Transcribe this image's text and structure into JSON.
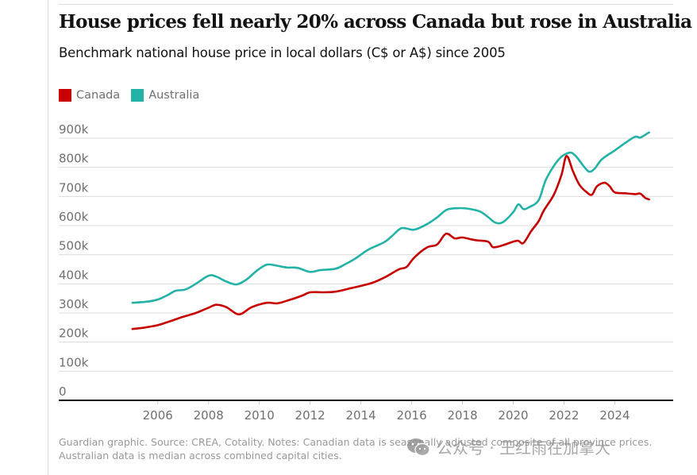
{
  "header": {
    "title": "House prices fell nearly 20% across Canada but rose in Australia",
    "subtitle": "Benchmark national house price in local dollars (C$ or A$) since 2005"
  },
  "legend": [
    {
      "label": "Canada",
      "color": "#c70000"
    },
    {
      "label": "Australia",
      "color": "#22b3a6"
    }
  ],
  "footer": {
    "source_note": "Guardian graphic. Source: CREA, Cotality. Notes: Canadian data is seasonally adjusted composite of all province prices. Australian data is median across combined capital cities."
  },
  "watermark": {
    "text": "公众号 · 王红雨在加拿大",
    "icon": "wechat-icon"
  },
  "chart_data": {
    "type": "line",
    "title": "House prices fell nearly 20% across Canada but rose in Australia",
    "subtitle": "Benchmark national house price in local dollars (C$ or A$) since 2005",
    "xlabel": "",
    "ylabel": "",
    "xlim": [
      2002.1,
      2026.3
    ],
    "ylim": [
      0,
      900000
    ],
    "x_ticks": [
      2006,
      2008,
      2010,
      2012,
      2014,
      2016,
      2018,
      2020,
      2022,
      2024
    ],
    "x_tick_labels": [
      "2006",
      "2008",
      "2010",
      "2012",
      "2014",
      "2016",
      "2018",
      "2020",
      "2022",
      "2024"
    ],
    "y_ticks": [
      0,
      100000,
      200000,
      300000,
      400000,
      500000,
      600000,
      700000,
      800000,
      900000
    ],
    "y_tick_labels": [
      "0",
      "100k",
      "200k",
      "300k",
      "400k",
      "500k",
      "600k",
      "700k",
      "800k",
      "900k"
    ],
    "grid": true,
    "legend_position": "top-left",
    "series": [
      {
        "name": "Canada",
        "color": "#c70000",
        "points": [
          [
            2005.0,
            245000
          ],
          [
            2005.5,
            250000
          ],
          [
            2006.0,
            258000
          ],
          [
            2006.5,
            272000
          ],
          [
            2007.0,
            287000
          ],
          [
            2007.5,
            300000
          ],
          [
            2008.0,
            318000
          ],
          [
            2008.3,
            328000
          ],
          [
            2008.7,
            320000
          ],
          [
            2009.2,
            295000
          ],
          [
            2009.7,
            320000
          ],
          [
            2010.3,
            335000
          ],
          [
            2010.7,
            333000
          ],
          [
            2011.2,
            345000
          ],
          [
            2011.7,
            360000
          ],
          [
            2012.0,
            371000
          ],
          [
            2012.5,
            371000
          ],
          [
            2013.0,
            373000
          ],
          [
            2013.6,
            385000
          ],
          [
            2014.0,
            393000
          ],
          [
            2014.5,
            405000
          ],
          [
            2015.0,
            425000
          ],
          [
            2015.5,
            450000
          ],
          [
            2015.8,
            458000
          ],
          [
            2016.1,
            490000
          ],
          [
            2016.6,
            525000
          ],
          [
            2017.0,
            535000
          ],
          [
            2017.35,
            572000
          ],
          [
            2017.7,
            556000
          ],
          [
            2018.0,
            559000
          ],
          [
            2018.5,
            550000
          ],
          [
            2019.0,
            545000
          ],
          [
            2019.2,
            526000
          ],
          [
            2019.5,
            530000
          ],
          [
            2020.0,
            545000
          ],
          [
            2020.2,
            548000
          ],
          [
            2020.4,
            540000
          ],
          [
            2020.7,
            580000
          ],
          [
            2021.0,
            615000
          ],
          [
            2021.2,
            651000
          ],
          [
            2021.6,
            706000
          ],
          [
            2021.9,
            774000
          ],
          [
            2022.1,
            839000
          ],
          [
            2022.35,
            787000
          ],
          [
            2022.6,
            741000
          ],
          [
            2022.9,
            714000
          ],
          [
            2023.1,
            706000
          ],
          [
            2023.3,
            735000
          ],
          [
            2023.6,
            747000
          ],
          [
            2023.8,
            735000
          ],
          [
            2024.0,
            714000
          ],
          [
            2024.4,
            711000
          ],
          [
            2024.8,
            708000
          ],
          [
            2025.0,
            710000
          ],
          [
            2025.2,
            695000
          ],
          [
            2025.35,
            690000
          ]
        ]
      },
      {
        "name": "Australia",
        "color": "#22b3a6",
        "points": [
          [
            2005.0,
            335000
          ],
          [
            2005.5,
            338000
          ],
          [
            2006.0,
            346000
          ],
          [
            2006.4,
            362000
          ],
          [
            2006.7,
            376000
          ],
          [
            2007.1,
            381000
          ],
          [
            2007.5,
            400000
          ],
          [
            2008.0,
            428000
          ],
          [
            2008.3,
            425000
          ],
          [
            2008.7,
            408000
          ],
          [
            2009.1,
            398000
          ],
          [
            2009.5,
            415000
          ],
          [
            2009.9,
            445000
          ],
          [
            2010.3,
            466000
          ],
          [
            2010.7,
            462000
          ],
          [
            2011.1,
            456000
          ],
          [
            2011.5,
            455000
          ],
          [
            2012.0,
            441000
          ],
          [
            2012.4,
            447000
          ],
          [
            2013.0,
            452000
          ],
          [
            2013.4,
            468000
          ],
          [
            2013.8,
            488000
          ],
          [
            2014.3,
            518000
          ],
          [
            2014.9,
            542000
          ],
          [
            2015.2,
            562000
          ],
          [
            2015.6,
            591000
          ],
          [
            2016.1,
            586000
          ],
          [
            2016.6,
            605000
          ],
          [
            2017.0,
            628000
          ],
          [
            2017.4,
            655000
          ],
          [
            2017.9,
            660000
          ],
          [
            2018.3,
            657000
          ],
          [
            2018.7,
            648000
          ],
          [
            2019.0,
            630000
          ],
          [
            2019.3,
            610000
          ],
          [
            2019.6,
            612000
          ],
          [
            2020.0,
            646000
          ],
          [
            2020.2,
            673000
          ],
          [
            2020.4,
            657000
          ],
          [
            2020.6,
            662000
          ],
          [
            2021.0,
            687000
          ],
          [
            2021.3,
            760000
          ],
          [
            2021.8,
            828000
          ],
          [
            2022.2,
            850000
          ],
          [
            2022.45,
            840000
          ],
          [
            2022.8,
            801000
          ],
          [
            2023.0,
            785000
          ],
          [
            2023.2,
            795000
          ],
          [
            2023.5,
            828000
          ],
          [
            2024.0,
            858000
          ],
          [
            2024.4,
            883000
          ],
          [
            2024.8,
            905000
          ],
          [
            2025.0,
            902000
          ],
          [
            2025.2,
            912000
          ],
          [
            2025.35,
            920000
          ]
        ]
      }
    ]
  }
}
